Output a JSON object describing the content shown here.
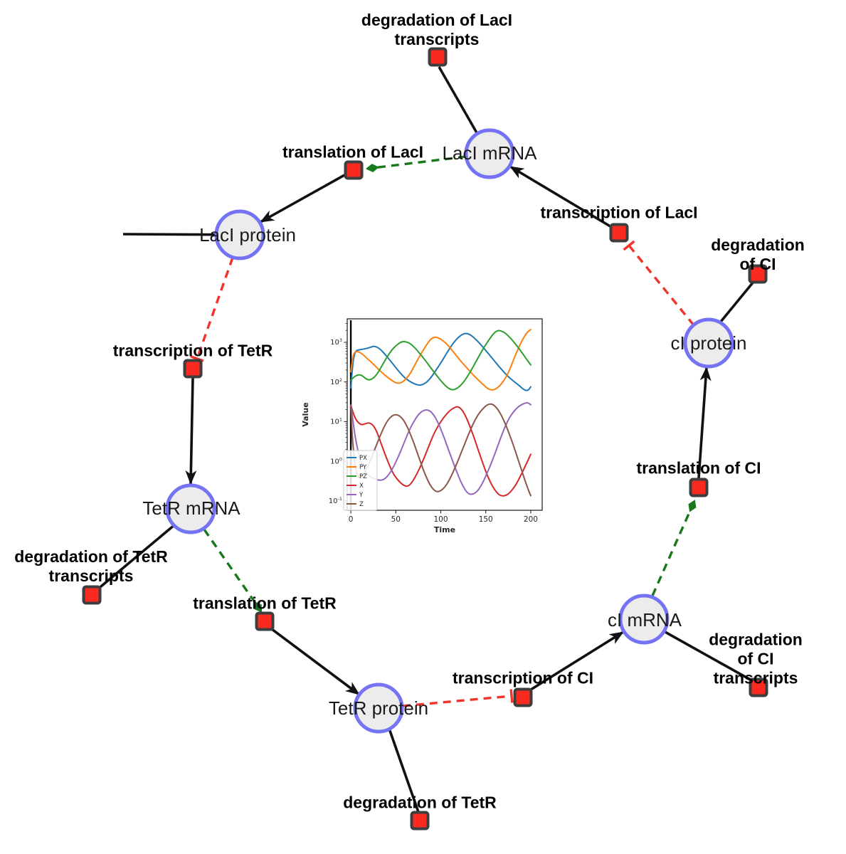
{
  "diagram": {
    "species_nodes": [
      {
        "id": "laci-mrna",
        "label": "LacI mRNA"
      },
      {
        "id": "laci-protein",
        "label": "LacI protein"
      },
      {
        "id": "ci-protein",
        "label": "cI protein"
      },
      {
        "id": "tetr-mrna",
        "label": "TetR mRNA"
      },
      {
        "id": "ci-mrna",
        "label": "cI mRNA"
      },
      {
        "id": "tetr-protein",
        "label": "TetR protein"
      }
    ],
    "reaction_nodes": [
      {
        "id": "degradation-laci-transcripts",
        "label": "degradation of LacI\ntranscripts"
      },
      {
        "id": "translation-laci",
        "label": "translation of LacI"
      },
      {
        "id": "transcription-laci",
        "label": "transcription of LacI"
      },
      {
        "id": "degradation-ci",
        "label": "degradation of CI"
      },
      {
        "id": "transcription-tetr",
        "label": "transcription of TetR"
      },
      {
        "id": "degradation-tetr-transcripts",
        "label": "degradation of TetR\ntranscripts"
      },
      {
        "id": "translation-tetr",
        "label": "translation of TetR"
      },
      {
        "id": "translation-ci",
        "label": "translation of CI"
      },
      {
        "id": "transcription-ci",
        "label": "transcription of CI"
      },
      {
        "id": "degradation-ci-transcripts",
        "label": "degradation of CI\ntranscripts"
      },
      {
        "id": "degradation-tetr",
        "label": "degradation of TetR"
      }
    ],
    "colors": {
      "species_fill": "#ececec",
      "species_border": "#7473f4",
      "reaction_fill": "#fa2a21",
      "reaction_border": "#3d3d3d",
      "edge_black": "#111111",
      "edge_activation_green": "#17781c",
      "edge_inhibition_red": "#f1332b"
    }
  },
  "chart_data": {
    "type": "line",
    "title": "",
    "xlabel": "Time",
    "ylabel": "Value",
    "x_ticks": [
      0,
      50,
      100,
      150,
      200
    ],
    "y_tick_exponents": [
      -1,
      0,
      1,
      2,
      3
    ],
    "y_scale": "log",
    "xlim": [
      -4,
      212.7
    ],
    "ylim_log10": [
      -1.237,
      3.592
    ],
    "vline_x": 0,
    "legend_position": "lower left",
    "series": [
      {
        "name": "PX",
        "color": "#1f77b4",
        "points": [
          [
            0,
            70
          ],
          [
            2,
            300
          ],
          [
            5,
            600
          ],
          [
            8,
            640
          ],
          [
            12,
            660
          ],
          [
            18,
            700
          ],
          [
            24,
            780
          ],
          [
            27,
            790
          ],
          [
            32,
            700
          ],
          [
            38,
            500
          ],
          [
            45,
            320
          ],
          [
            52,
            200
          ],
          [
            60,
            125
          ],
          [
            68,
            95
          ],
          [
            75,
            82
          ],
          [
            80,
            85
          ],
          [
            86,
            105
          ],
          [
            92,
            160
          ],
          [
            100,
            300
          ],
          [
            108,
            600
          ],
          [
            115,
            1050
          ],
          [
            122,
            1500
          ],
          [
            127,
            1700
          ],
          [
            132,
            1600
          ],
          [
            138,
            1250
          ],
          [
            145,
            850
          ],
          [
            152,
            550
          ],
          [
            160,
            330
          ],
          [
            168,
            200
          ],
          [
            175,
            135
          ],
          [
            182,
            100
          ],
          [
            188,
            78
          ],
          [
            193,
            62
          ],
          [
            197,
            60
          ],
          [
            200,
            75
          ]
        ]
      },
      {
        "name": "PY",
        "color": "#ff7f0e",
        "points": [
          [
            0,
            180
          ],
          [
            2,
            420
          ],
          [
            4,
            560
          ],
          [
            7,
            590
          ],
          [
            10,
            560
          ],
          [
            14,
            480
          ],
          [
            18,
            390
          ],
          [
            24,
            300
          ],
          [
            30,
            215
          ],
          [
            36,
            160
          ],
          [
            42,
            125
          ],
          [
            48,
            100
          ],
          [
            52,
            92
          ],
          [
            56,
            95
          ],
          [
            60,
            110
          ],
          [
            66,
            160
          ],
          [
            72,
            290
          ],
          [
            78,
            520
          ],
          [
            84,
            850
          ],
          [
            88,
            1150
          ],
          [
            92,
            1350
          ],
          [
            96,
            1330
          ],
          [
            100,
            1200
          ],
          [
            106,
            950
          ],
          [
            112,
            650
          ],
          [
            118,
            440
          ],
          [
            124,
            300
          ],
          [
            130,
            215
          ],
          [
            136,
            150
          ],
          [
            142,
            110
          ],
          [
            148,
            82
          ],
          [
            153,
            65
          ],
          [
            158,
            62
          ],
          [
            163,
            70
          ],
          [
            168,
            92
          ],
          [
            174,
            150
          ],
          [
            180,
            320
          ],
          [
            186,
            700
          ],
          [
            192,
            1300
          ],
          [
            196,
            1800
          ],
          [
            200,
            2100
          ]
        ]
      },
      {
        "name": "PZ",
        "color": "#2ca02c",
        "points": [
          [
            0,
            110
          ],
          [
            3,
            130
          ],
          [
            6,
            145
          ],
          [
            9,
            152
          ],
          [
            12,
            148
          ],
          [
            15,
            130
          ],
          [
            18,
            115
          ],
          [
            21,
            112
          ],
          [
            24,
            120
          ],
          [
            28,
            145
          ],
          [
            32,
            200
          ],
          [
            36,
            290
          ],
          [
            40,
            420
          ],
          [
            45,
            620
          ],
          [
            50,
            820
          ],
          [
            55,
            990
          ],
          [
            58,
            1050
          ],
          [
            62,
            1020
          ],
          [
            66,
            930
          ],
          [
            72,
            700
          ],
          [
            78,
            480
          ],
          [
            84,
            320
          ],
          [
            90,
            210
          ],
          [
            96,
            140
          ],
          [
            102,
            95
          ],
          [
            108,
            70
          ],
          [
            113,
            62
          ],
          [
            118,
            68
          ],
          [
            124,
            90
          ],
          [
            130,
            140
          ],
          [
            136,
            240
          ],
          [
            142,
            430
          ],
          [
            148,
            750
          ],
          [
            154,
            1200
          ],
          [
            159,
            1700
          ],
          [
            163,
            2000
          ],
          [
            167,
            1950
          ],
          [
            172,
            1700
          ],
          [
            178,
            1250
          ],
          [
            184,
            850
          ],
          [
            190,
            560
          ],
          [
            195,
            380
          ],
          [
            200,
            270
          ]
        ]
      },
      {
        "name": "X",
        "color": "#d62728",
        "points": [
          [
            0,
            26
          ],
          [
            2,
            18
          ],
          [
            5,
            12
          ],
          [
            8,
            9.5
          ],
          [
            12,
            8.2
          ],
          [
            16,
            8.8
          ],
          [
            20,
            9.4
          ],
          [
            24,
            8.5
          ],
          [
            28,
            6.2
          ],
          [
            32,
            3.6
          ],
          [
            36,
            2.0
          ],
          [
            40,
            1.15
          ],
          [
            44,
            0.68
          ],
          [
            48,
            0.45
          ],
          [
            54,
            0.3
          ],
          [
            60,
            0.235
          ],
          [
            64,
            0.235
          ],
          [
            68,
            0.29
          ],
          [
            74,
            0.5
          ],
          [
            80,
            1.0
          ],
          [
            86,
            2.2
          ],
          [
            92,
            4.8
          ],
          [
            98,
            8.5
          ],
          [
            104,
            13.5
          ],
          [
            110,
            19
          ],
          [
            115,
            22.5
          ],
          [
            118,
            24
          ],
          [
            122,
            22
          ],
          [
            127,
            15
          ],
          [
            132,
            8
          ],
          [
            137,
            4
          ],
          [
            142,
            1.8
          ],
          [
            147,
            0.85
          ],
          [
            152,
            0.42
          ],
          [
            158,
            0.22
          ],
          [
            164,
            0.145
          ],
          [
            168,
            0.132
          ],
          [
            172,
            0.135
          ],
          [
            176,
            0.155
          ],
          [
            181,
            0.21
          ],
          [
            186,
            0.32
          ],
          [
            191,
            0.55
          ],
          [
            196,
            0.95
          ],
          [
            200,
            1.5
          ]
        ]
      },
      {
        "name": "Y",
        "color": "#9467bd",
        "points": [
          [
            0,
            26
          ],
          [
            2,
            12
          ],
          [
            4,
            5.5
          ],
          [
            6,
            3.0
          ],
          [
            8,
            1.8
          ],
          [
            10,
            1.15
          ],
          [
            14,
            0.68
          ],
          [
            18,
            0.48
          ],
          [
            22,
            0.4
          ],
          [
            26,
            0.36
          ],
          [
            30,
            0.335
          ],
          [
            34,
            0.33
          ],
          [
            38,
            0.36
          ],
          [
            42,
            0.45
          ],
          [
            46,
            0.62
          ],
          [
            50,
            0.95
          ],
          [
            54,
            1.5
          ],
          [
            58,
            2.5
          ],
          [
            62,
            4.2
          ],
          [
            66,
            6.8
          ],
          [
            70,
            10
          ],
          [
            74,
            14
          ],
          [
            78,
            17.5
          ],
          [
            82,
            19.5
          ],
          [
            85,
            19.8
          ],
          [
            88,
            18.5
          ],
          [
            92,
            15
          ],
          [
            96,
            10.5
          ],
          [
            100,
            6.5
          ],
          [
            104,
            3.8
          ],
          [
            108,
            2.1
          ],
          [
            112,
            1.2
          ],
          [
            116,
            0.68
          ],
          [
            120,
            0.4
          ],
          [
            124,
            0.25
          ],
          [
            128,
            0.175
          ],
          [
            131,
            0.15
          ],
          [
            134,
            0.145
          ],
          [
            138,
            0.155
          ],
          [
            142,
            0.19
          ],
          [
            146,
            0.27
          ],
          [
            150,
            0.42
          ],
          [
            154,
            0.68
          ],
          [
            158,
            1.15
          ],
          [
            162,
            2.0
          ],
          [
            166,
            3.6
          ],
          [
            170,
            6.2
          ],
          [
            174,
            10
          ],
          [
            178,
            14.5
          ],
          [
            182,
            19
          ],
          [
            186,
            23.5
          ],
          [
            190,
            27
          ],
          [
            194,
            29.5
          ],
          [
            197,
            30
          ],
          [
            200,
            26.5
          ]
        ]
      },
      {
        "name": "Z",
        "color": "#8c564b",
        "points": [
          [
            0,
            25
          ],
          [
            1,
            8
          ],
          [
            2,
            3
          ],
          [
            4,
            1.1
          ],
          [
            6,
            0.55
          ],
          [
            8,
            0.4
          ],
          [
            10,
            0.38
          ],
          [
            12,
            0.4
          ],
          [
            14,
            0.45
          ],
          [
            16,
            0.55
          ],
          [
            18,
            0.7
          ],
          [
            21,
            0.95
          ],
          [
            24,
            1.4
          ],
          [
            27,
            2.1
          ],
          [
            30,
            3.1
          ],
          [
            33,
            4.6
          ],
          [
            36,
            6.6
          ],
          [
            39,
            9.0
          ],
          [
            42,
            11.5
          ],
          [
            45,
            13.5
          ],
          [
            48,
            14.8
          ],
          [
            51,
            15.0
          ],
          [
            54,
            14
          ],
          [
            58,
            11.5
          ],
          [
            62,
            8.0
          ],
          [
            66,
            5.0
          ],
          [
            70,
            2.9
          ],
          [
            74,
            1.6
          ],
          [
            78,
            0.88
          ],
          [
            82,
            0.5
          ],
          [
            86,
            0.31
          ],
          [
            90,
            0.215
          ],
          [
            94,
            0.175
          ],
          [
            97,
            0.17
          ],
          [
            100,
            0.18
          ],
          [
            104,
            0.215
          ],
          [
            108,
            0.29
          ],
          [
            112,
            0.44
          ],
          [
            116,
            0.7
          ],
          [
            120,
            1.15
          ],
          [
            124,
            1.95
          ],
          [
            128,
            3.3
          ],
          [
            132,
            5.5
          ],
          [
            136,
            8.8
          ],
          [
            140,
            13.2
          ],
          [
            144,
            18
          ],
          [
            148,
            22.5
          ],
          [
            151,
            26
          ],
          [
            154,
            27.8
          ],
          [
            157,
            27.5
          ],
          [
            160,
            25
          ],
          [
            164,
            19.5
          ],
          [
            168,
            13.5
          ],
          [
            172,
            8.5
          ],
          [
            176,
            5.0
          ],
          [
            180,
            2.8
          ],
          [
            184,
            1.5
          ],
          [
            188,
            0.8
          ],
          [
            192,
            0.42
          ],
          [
            196,
            0.225
          ],
          [
            200,
            0.135
          ]
        ]
      }
    ]
  }
}
